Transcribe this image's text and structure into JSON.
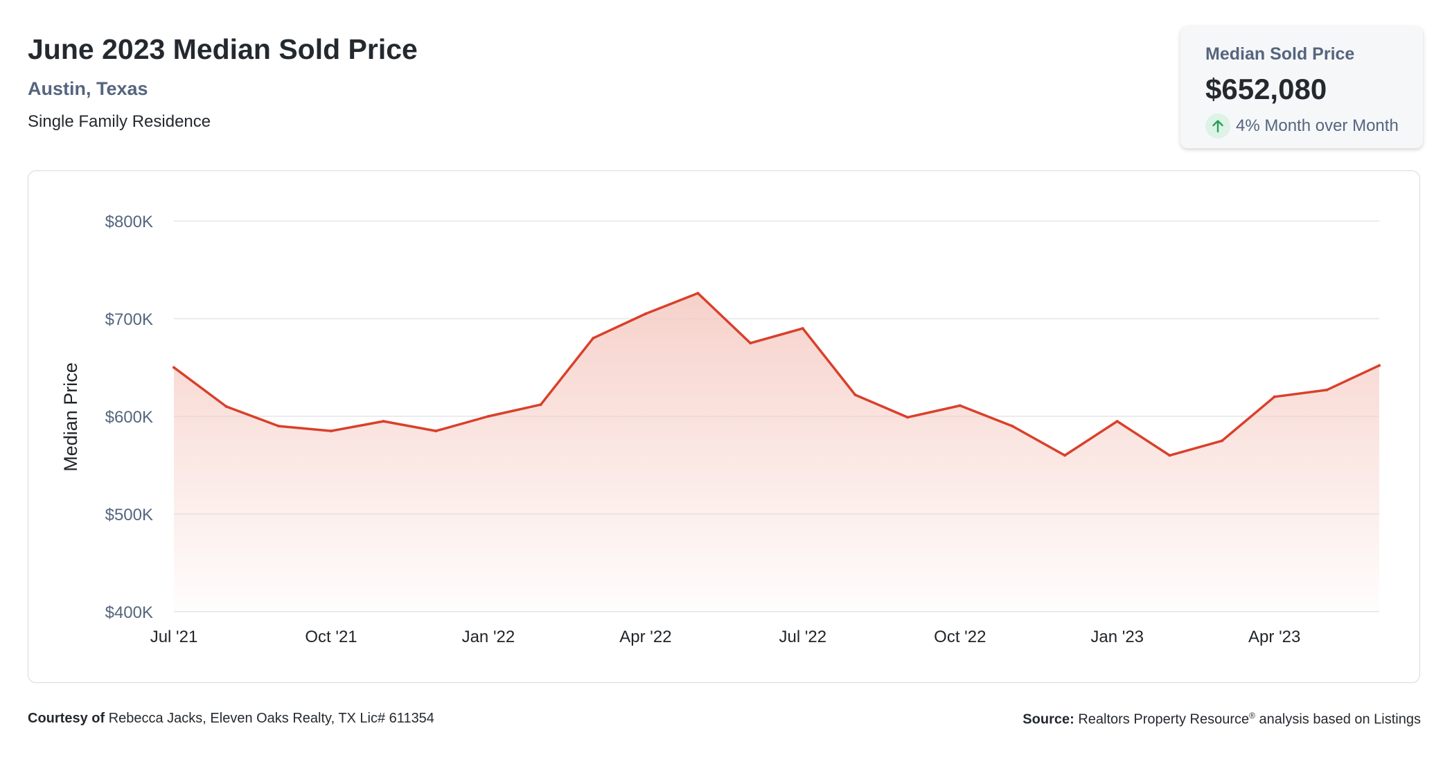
{
  "header": {
    "title": "June 2023 Median Sold Price",
    "location": "Austin, Texas",
    "segment": "Single Family Residence"
  },
  "stat_card": {
    "label": "Median Sold Price",
    "value": "$652,080",
    "change_text": "4% Month over Month",
    "change_icon": "arrow-up-icon",
    "change_color": "#2e9c5b"
  },
  "footer": {
    "courtesy_label": "Courtesy of",
    "courtesy_text": "Rebecca Jacks, Eleven Oaks Realty, TX Lic# 611354",
    "source_label": "Source:",
    "source_text_a": "Realtors Property Resource",
    "source_sup": "®",
    "source_text_b": " analysis based on Listings"
  },
  "colors": {
    "line": "#d9402b",
    "fill_top": "#f5c9c1",
    "grid": "#e3e5ea",
    "tick_text": "#55657e"
  },
  "chart_data": {
    "type": "area",
    "ylabel": "Median Price",
    "ylim": [
      400000,
      800000
    ],
    "y_ticks": [
      400000,
      500000,
      600000,
      700000,
      800000
    ],
    "y_tick_labels": [
      "$400K",
      "$500K",
      "$600K",
      "$700K",
      "$800K"
    ],
    "x": [
      "Jul '21",
      "Aug '21",
      "Sep '21",
      "Oct '21",
      "Nov '21",
      "Dec '21",
      "Jan '22",
      "Feb '22",
      "Mar '22",
      "Apr '22",
      "May '22",
      "Jun '22",
      "Jul '22",
      "Aug '22",
      "Sep '22",
      "Oct '22",
      "Nov '22",
      "Dec '22",
      "Jan '23",
      "Feb '23",
      "Mar '23",
      "Apr '23",
      "May '23",
      "Jun '23"
    ],
    "x_tick_labels": [
      "Jul '21",
      "Oct '21",
      "Jan '22",
      "Apr '22",
      "Jul '22",
      "Oct '22",
      "Jan '23",
      "Apr '23"
    ],
    "series": [
      {
        "values": [
          650000,
          610000,
          590000,
          585000,
          595000,
          585000,
          600000,
          612000,
          680000,
          705000,
          726000,
          675000,
          690000,
          622000,
          599000,
          611000,
          590000,
          560000,
          595000,
          560000,
          575000,
          620000,
          627000,
          652080
        ]
      }
    ]
  }
}
